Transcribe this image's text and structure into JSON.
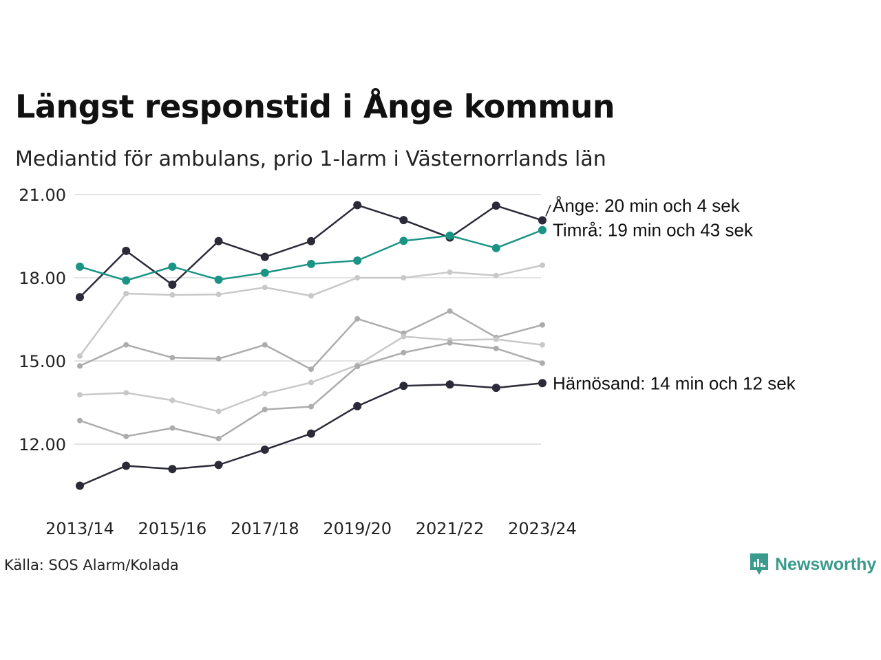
{
  "header": {
    "title": "Längst responstid i Ånge kommun",
    "subtitle": "Mediantid för ambulans, prio 1-larm i Västernorrlands län"
  },
  "footer": {
    "source": "Källa: SOS Alarm/Kolada",
    "brand": "Newsworthy"
  },
  "colors": {
    "dark": "#2b2a38",
    "accent": "#1a9485",
    "grey_light": "#c8c8c8",
    "grey_mid": "#acacac",
    "gridline": "#e3e3e3"
  },
  "chart_data": {
    "type": "line",
    "categories": [
      "2013/14",
      "2014/15",
      "2015/16",
      "2016/17",
      "2017/18",
      "2018/19",
      "2019/20",
      "2020/21",
      "2021/22",
      "2022/23",
      "2023/24"
    ],
    "x_tick_labels": [
      "2013/14",
      "2015/16",
      "2017/18",
      "2019/20",
      "2021/22",
      "2023/24"
    ],
    "y_ticks": [
      12,
      15,
      18,
      21
    ],
    "y_tick_labels": [
      "12.00",
      "15.00",
      "18.00",
      "21.00"
    ],
    "ylim": [
      10.3,
      21.4
    ],
    "grid": "horizontal",
    "series": [
      {
        "style": "grey_light",
        "values": [
          15.18,
          17.43,
          17.38,
          17.4,
          17.65,
          17.35,
          18.0,
          18.0,
          18.2,
          18.08,
          18.45
        ]
      },
      {
        "style": "grey_mid",
        "values": [
          14.82,
          15.58,
          15.12,
          15.08,
          15.58,
          14.7,
          16.52,
          16.0,
          16.8,
          15.85,
          16.3
        ]
      },
      {
        "style": "grey_light",
        "values": [
          13.78,
          13.85,
          13.58,
          13.18,
          13.82,
          14.22,
          14.85,
          15.88,
          15.75,
          15.78,
          15.58
        ]
      },
      {
        "style": "grey_mid",
        "values": [
          12.85,
          12.28,
          12.58,
          12.2,
          13.25,
          13.35,
          14.8,
          15.3,
          15.65,
          15.45,
          14.92
        ]
      },
      {
        "name": "Ånge",
        "style": "dark",
        "label": "Ånge: 20 min och 4 sek",
        "values": [
          17.3,
          18.97,
          17.75,
          19.32,
          18.75,
          19.32,
          20.62,
          20.08,
          19.45,
          20.6,
          20.07
        ]
      },
      {
        "name": "Timrå",
        "style": "accent",
        "label": "Timrå: 19 min och 43 sek",
        "values": [
          18.4,
          17.9,
          18.4,
          17.93,
          18.18,
          18.5,
          18.62,
          19.33,
          19.52,
          19.07,
          19.72
        ]
      },
      {
        "name": "Härnösand",
        "style": "dark",
        "label": "Härnösand: 14 min och 12 sek",
        "values": [
          10.5,
          11.22,
          11.1,
          11.25,
          11.8,
          12.38,
          13.37,
          14.1,
          14.15,
          14.03,
          14.2
        ]
      }
    ]
  }
}
